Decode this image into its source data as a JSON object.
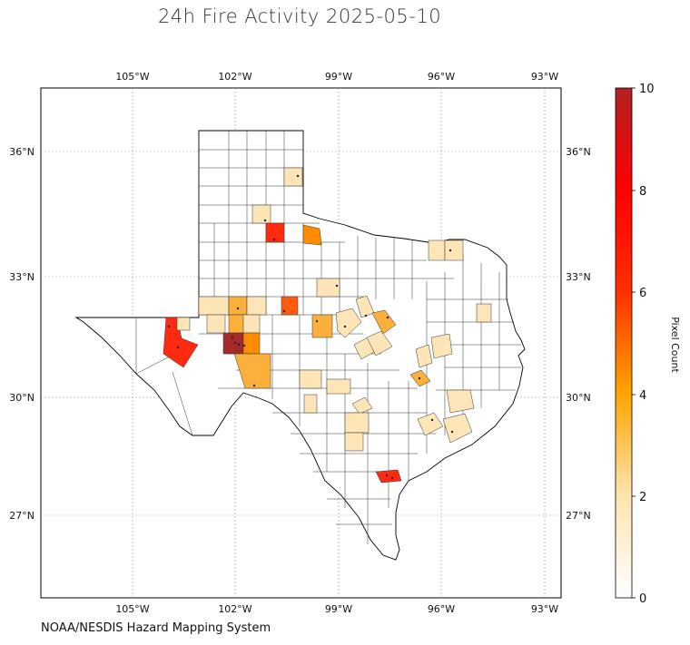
{
  "title": "24h Fire Activity 2025-05-10",
  "credit": "NOAA/NESDIS Hazard Mapping System",
  "lon_ticks": [
    "105°W",
    "102°W",
    "99°W",
    "96°W",
    "93°W"
  ],
  "lat_ticks": [
    "36°N",
    "33°N",
    "30°N",
    "27°N"
  ],
  "colorbar": {
    "label": "Pixel Count",
    "ticks": [
      "0",
      "2",
      "4",
      "6",
      "8",
      "10"
    ],
    "range": [
      0,
      10
    ],
    "colors": [
      "#ffffff",
      "#ffe4b0",
      "#ffa500",
      "#ff3000",
      "#ff0000",
      "#b22222"
    ]
  },
  "region": "Texas counties",
  "colors": {
    "low": "#fde5b8",
    "mid": "#fbb03b",
    "orange": "#ff8c00",
    "red": "#ff2a10",
    "dark": "#a52a2a"
  },
  "highlighted_counties_pixel_counts": [
    1,
    1,
    2,
    2,
    3,
    4,
    5,
    6,
    6,
    7,
    9
  ]
}
